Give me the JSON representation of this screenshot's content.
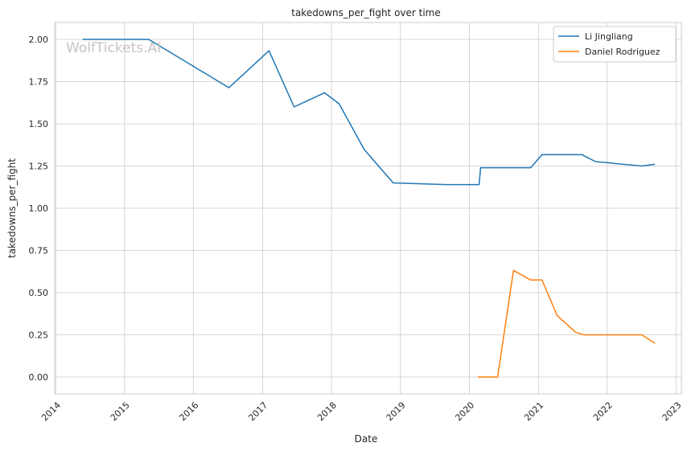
{
  "watermark": "WolfTickets.AI",
  "chart_data": {
    "type": "line",
    "title": "takedowns_per_fight over time",
    "xlabel": "Date",
    "ylabel": "takedowns_per_fight",
    "xlim": [
      "2013-12-27",
      "2023-01-28"
    ],
    "ylim": [
      -0.1,
      2.1
    ],
    "x_ticks": [
      "2014",
      "2015",
      "2016",
      "2017",
      "2018",
      "2019",
      "2020",
      "2021",
      "2022",
      "2023"
    ],
    "y_ticks": [
      "0.00",
      "0.25",
      "0.50",
      "0.75",
      "1.00",
      "1.25",
      "1.50",
      "1.75",
      "2.00"
    ],
    "grid": true,
    "legend_position": "top-right",
    "series": [
      {
        "name": "Li Jingliang",
        "color": "#1f77b4",
        "points": [
          [
            "2014-05-24",
            2.0
          ],
          [
            "2015-05-09",
            2.0
          ],
          [
            "2016-07-07",
            1.714
          ],
          [
            "2017-02-04",
            1.933
          ],
          [
            "2017-06-17",
            1.6
          ],
          [
            "2017-11-25",
            1.684
          ],
          [
            "2018-02-10",
            1.619
          ],
          [
            "2018-06-23",
            1.348
          ],
          [
            "2018-11-24",
            1.15
          ],
          [
            "2019-08-31",
            1.14
          ],
          [
            "2020-02-22",
            1.14
          ],
          [
            "2020-03-01",
            1.24
          ],
          [
            "2020-11-21",
            1.24
          ],
          [
            "2021-01-20",
            1.317
          ],
          [
            "2021-08-20",
            1.317
          ],
          [
            "2021-10-30",
            1.276
          ],
          [
            "2022-07-02",
            1.25
          ],
          [
            "2022-09-10",
            1.26
          ]
        ]
      },
      {
        "name": "Daniel Rodriguez",
        "color": "#ff7f0e",
        "points": [
          [
            "2020-02-15",
            0.0
          ],
          [
            "2020-05-30",
            0.0
          ],
          [
            "2020-08-22",
            0.632
          ],
          [
            "2020-11-21",
            0.575
          ],
          [
            "2021-01-20",
            0.575
          ],
          [
            "2021-04-10",
            0.364
          ],
          [
            "2021-07-17",
            0.265
          ],
          [
            "2021-08-28",
            0.25
          ],
          [
            "2022-07-02",
            0.25
          ],
          [
            "2022-09-10",
            0.2
          ]
        ]
      }
    ]
  }
}
